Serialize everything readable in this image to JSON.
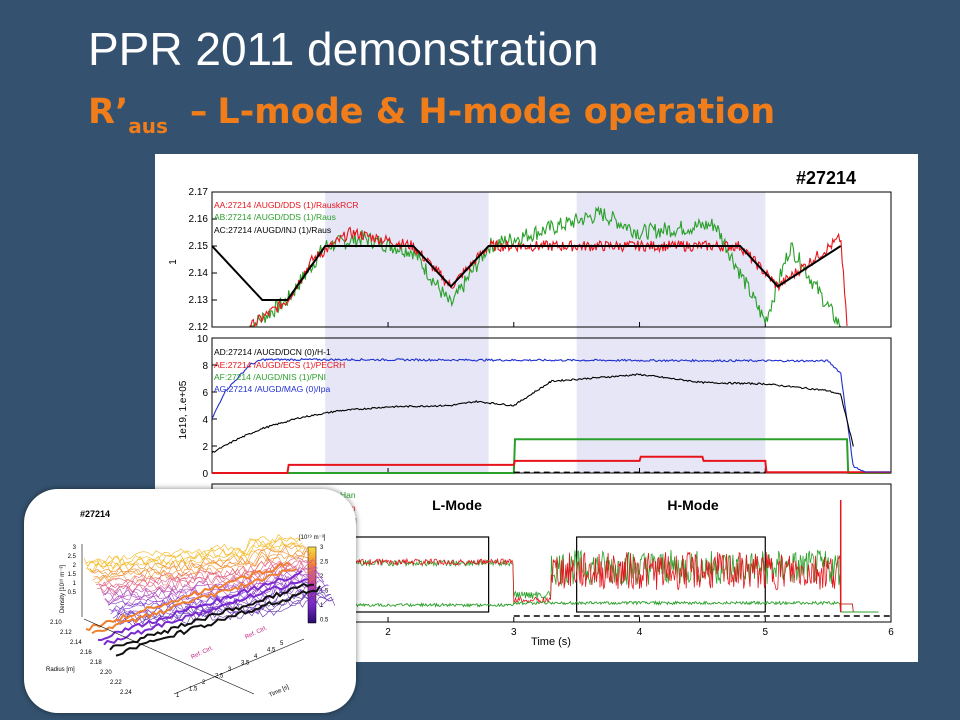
{
  "slide": {
    "title": "PPR 2011 demonstration",
    "subtitle_main": "R’",
    "subtitle_sub": "aus",
    "subtitle_dash": "–",
    "subtitle_rest": "L-mode & H-mode operation"
  },
  "chart": {
    "shot_label": "#27214",
    "xlabel": "Time (s)",
    "x_ticks": [
      "2",
      "3",
      "4",
      "5",
      "6"
    ],
    "xlim": [
      0.6,
      6
    ],
    "shaded_intervals": [
      [
        1.5,
        2.8
      ],
      [
        3.5,
        5.0
      ]
    ],
    "panel1": {
      "ylabel": "1",
      "y_ticks": [
        "2.12",
        "2.13",
        "2.14",
        "2.15",
        "2.16",
        "2.17"
      ],
      "ylim": [
        2.12,
        2.17
      ],
      "legend": [
        {
          "text": "AA:27214  /AUGD/DDS  (1)/RauskRCR",
          "color": "#e8141c"
        },
        {
          "text": "AB:27214  /AUGD/DDS  (1)/Raus",
          "color": "#2aa02a"
        },
        {
          "text": "AC:27214  /AUGD/INJ  (1)/Raus",
          "color": "#000000"
        }
      ]
    },
    "panel2": {
      "ylabel": "1e19, 1.e+05",
      "y_ticks": [
        "0",
        "2",
        "4",
        "6",
        "8",
        "10"
      ],
      "ylim": [
        0,
        10
      ],
      "legend": [
        {
          "text": "AD:27214  /AUGD/DCN  (0)/H-1",
          "color": "#000000"
        },
        {
          "text": "AE:27214  /AUGD/ECS  (1)/PECRH",
          "color": "#e8141c"
        },
        {
          "text": "AF:27214  /AUGD/NIS  (1)/PNI",
          "color": "#2aa02a"
        },
        {
          "text": "AG:27214  /AUGD/MAG  (0)/Ipa",
          "color": "#1f2fd0"
        }
      ]
    },
    "panel3": {
      "legend_fragments": [
        "Han",
        "Han",
        "d"
      ],
      "annotations": [
        "L-Mode",
        "H-Mode"
      ]
    }
  },
  "chart_data": [
    {
      "type": "line",
      "title": "",
      "xlabel": "Time (s)",
      "ylabel": "1",
      "ylim": [
        2.12,
        2.17
      ],
      "series": [
        {
          "name": "AC:27214 /AUGD/INJ (1)/Raus",
          "color": "#000000",
          "x": [
            0.6,
            1.0,
            1.2,
            1.5,
            2.2,
            2.5,
            2.8,
            3.5,
            4.8,
            5.1,
            5.6
          ],
          "y": [
            2.15,
            2.13,
            2.13,
            2.15,
            2.15,
            2.135,
            2.15,
            2.15,
            2.15,
            2.135,
            2.15
          ]
        },
        {
          "name": "AA:27214 /AUGD/DDS (1)/RauskRCR",
          "color": "#e8141c",
          "x": [
            0.9,
            1.2,
            1.4,
            1.7,
            2.2,
            2.5,
            2.8,
            3.5,
            4.8,
            5.0,
            5.1,
            5.6,
            5.65
          ],
          "y": [
            2.12,
            2.13,
            2.145,
            2.155,
            2.15,
            2.135,
            2.15,
            2.15,
            2.15,
            2.14,
            2.135,
            2.153,
            2.12
          ]
        },
        {
          "name": "AB:27214 /AUGD/DDS (1)/Raus",
          "color": "#2aa02a",
          "x": [
            0.9,
            1.2,
            1.5,
            1.8,
            2.2,
            2.5,
            2.8,
            3.7,
            4.0,
            4.6,
            5.0,
            5.2,
            5.6
          ],
          "y": [
            2.12,
            2.13,
            2.15,
            2.153,
            2.148,
            2.128,
            2.15,
            2.162,
            2.155,
            2.158,
            2.122,
            2.15,
            2.12
          ]
        }
      ]
    },
    {
      "type": "line",
      "title": "",
      "xlabel": "Time (s)",
      "ylabel": "1e19, 1.e+05",
      "ylim": [
        0,
        10
      ],
      "series": [
        {
          "name": "AD:27214 /AUGD/DCN (0)/H-1",
          "color": "#000000",
          "x": [
            0.6,
            0.8,
            1.0,
            1.3,
            1.6,
            2.0,
            2.5,
            2.7,
            3.0,
            3.3,
            4.0,
            4.5,
            5.0,
            5.5,
            5.6,
            5.7
          ],
          "y": [
            1.5,
            2.5,
            3.3,
            4.1,
            4.6,
            4.9,
            5.0,
            5.3,
            5.0,
            6.8,
            7.3,
            6.7,
            6.6,
            6.1,
            5.8,
            2.0
          ]
        },
        {
          "name": "AE:27214 /AUGD/ECS (1)/PECRH",
          "color": "#e8141c",
          "x": [
            0.6,
            1.2,
            1.21,
            3.0,
            3.01,
            4.0,
            4.01,
            4.5,
            4.51,
            5.0,
            5.01,
            6.0
          ],
          "y": [
            0,
            0,
            0.6,
            0.6,
            0.9,
            0.9,
            1.2,
            1.2,
            0.9,
            0.9,
            0.05,
            0.05
          ]
        },
        {
          "name": "AF:27214 /AUGD/NIS (1)/PNI",
          "color": "#2aa02a",
          "x": [
            0.6,
            3.0,
            3.01,
            5.65,
            5.66,
            6.0
          ],
          "y": [
            0,
            0,
            2.5,
            2.5,
            0,
            0
          ]
        },
        {
          "name": "AG:27214 /AUGD/MAG (0)/Ipa",
          "color": "#1f2fd0",
          "x": [
            0.6,
            0.7,
            0.9,
            1.0,
            1.5,
            5.5,
            5.6,
            5.7,
            5.8,
            6.0
          ],
          "y": [
            4.0,
            6.0,
            8.0,
            8.4,
            8.4,
            8.3,
            7.4,
            0.5,
            0,
            0
          ]
        }
      ]
    },
    {
      "type": "line",
      "title": "",
      "xlabel": "Time (s)",
      "ylabel": "",
      "series": [
        {
          "name": "red",
          "color": "#e8141c"
        },
        {
          "name": "green",
          "color": "#2aa02a"
        }
      ]
    }
  ],
  "inset": {
    "shot_label": "#27214",
    "zlabel": "Density [10¹⁹ m⁻³]",
    "colorbar_label": "[10¹⁹ m⁻³]",
    "colorbar_ticks": [
      "3",
      "2.5",
      "2",
      "1.5",
      "1",
      "0.5"
    ],
    "z_ticks": [
      "3",
      "2.5",
      "2",
      "1.5",
      "1",
      "0.5"
    ],
    "radius_ticks": [
      "2.10",
      "2.12",
      "2.14",
      "2.16",
      "2.18",
      "2.20",
      "2.22",
      "2.24"
    ],
    "radius_label": "Radius [m]",
    "time_ticks": [
      "1",
      "1.5",
      "2",
      "2.5",
      "3",
      "3.5",
      "4",
      "4.5",
      "5"
    ],
    "time_label": "Time [s]",
    "ref_labels": [
      "Ref. Ctrl.",
      "Ref. Ctrl."
    ]
  }
}
